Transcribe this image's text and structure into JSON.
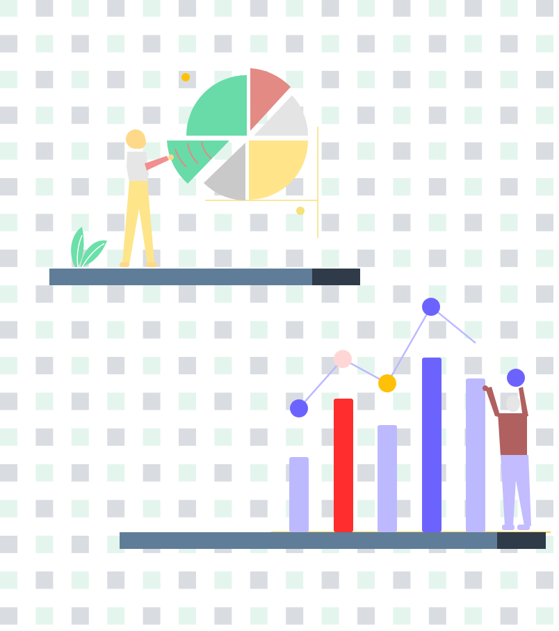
{
  "colors": {
    "background": "#ffffff",
    "tile_gray": "#d9dde2",
    "tile_mint": "#e4f5ee",
    "shelf": "#5f7d98",
    "shelf_end": "#2f3b49",
    "pie_green": "#68dba8",
    "pie_salmon": "#e38a85",
    "pie_light_gray": "#e4e4e4",
    "pie_yellow": "#ffe48a",
    "pie_mid_gray": "#c9c9c9",
    "accent_yellow": "#f5e07a",
    "bar_lavender": "#bdb9ff",
    "bar_red": "#ff2d2d",
    "bar_blue": "#6c63ff",
    "dot_pink": "#ffd6d6",
    "dot_gold": "#ffc107",
    "line_lavender": "#bdb9ff",
    "person_skin_light": "#ffd98a",
    "person_pants_yellow": "#fee58a",
    "person_shirt_gray": "#e6e6e6",
    "person_arm_pink": "#f28f8f",
    "person_shirt_maroon": "#b0605f",
    "person_pants_lavender": "#c3bcff",
    "plant_green": "#6be0a8"
  },
  "illustrations": {
    "top_scene": "woman-presenting-pie-chart",
    "bottom_scene": "man-raising-bar-chart"
  }
}
